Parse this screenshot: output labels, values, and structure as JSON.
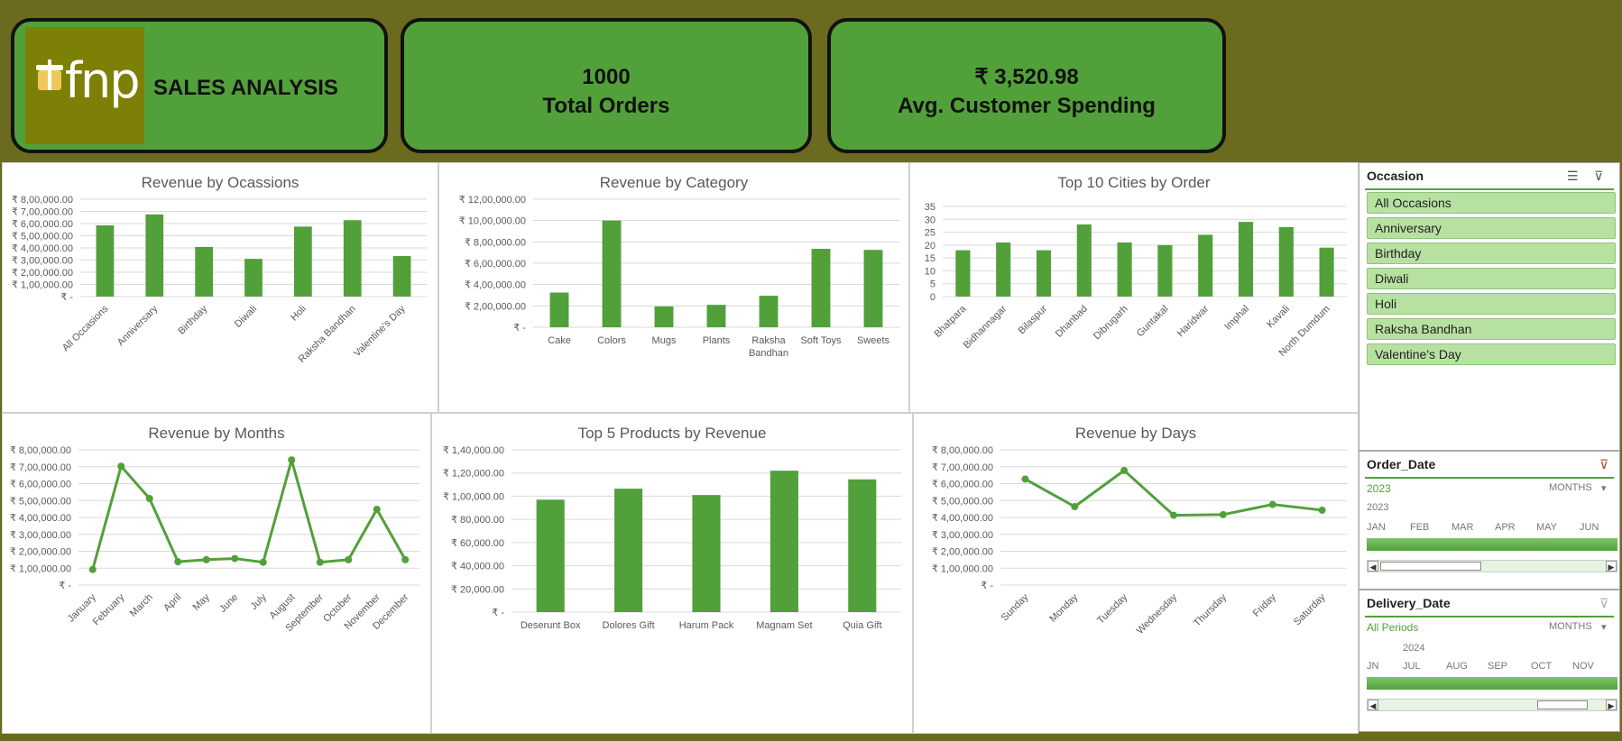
{
  "header": {
    "logo_text": "fnp",
    "title": "SALES ANALYSIS"
  },
  "kpis": {
    "orders_value": "1000",
    "orders_label": "Total Orders",
    "spending_value": "₹ 3,520.98",
    "spending_label": "Avg. Customer Spending"
  },
  "colors": {
    "accent": "#52a03a",
    "background": "#6b6b1f",
    "brand": "#7d8007"
  },
  "chart_data": [
    {
      "id": "occasions",
      "type": "bar",
      "title": "Revenue by Ocassions",
      "categories": [
        "All Occasions",
        "Anniversary",
        "Birthday",
        "Diwali",
        "Holi",
        "Raksha Bandhan",
        "Valentine's Day"
      ],
      "values": [
        585000,
        675000,
        408000,
        310000,
        575000,
        628000,
        333000
      ],
      "ylim": [
        0,
        800000
      ],
      "yticks": [
        0,
        100000,
        200000,
        300000,
        400000,
        500000,
        600000,
        700000,
        800000
      ],
      "ytick_labels": [
        "₹ -",
        "₹ 1,00,000.00",
        "₹ 2,00,000.00",
        "₹ 3,00,000.00",
        "₹ 4,00,000.00",
        "₹ 5,00,000.00",
        "₹ 6,00,000.00",
        "₹ 7,00,000.00",
        "₹ 8,00,000.00"
      ],
      "rotate_x": true
    },
    {
      "id": "category",
      "type": "bar",
      "title": "Revenue by Category",
      "categories": [
        "Cake",
        "Colors",
        "Mugs",
        "Plants",
        "Raksha Bandhan",
        "Soft Toys",
        "Sweets"
      ],
      "x_label_lines": [
        [
          "Cake"
        ],
        [
          "Colors"
        ],
        [
          "Mugs"
        ],
        [
          "Plants"
        ],
        [
          "Raksha",
          "Bandhan"
        ],
        [
          "Soft Toys"
        ],
        [
          "Sweets"
        ]
      ],
      "values": [
        325000,
        1000000,
        195000,
        210000,
        295000,
        735000,
        725000
      ],
      "ylim": [
        0,
        1200000
      ],
      "yticks": [
        0,
        200000,
        400000,
        600000,
        800000,
        1000000,
        1200000
      ],
      "ytick_labels": [
        "₹ -",
        "₹ 2,00,000.00",
        "₹ 4,00,000.00",
        "₹ 6,00,000.00",
        "₹ 8,00,000.00",
        "₹ 10,00,000.00",
        "₹ 12,00,000.00"
      ],
      "rotate_x": false
    },
    {
      "id": "cities",
      "type": "bar",
      "title": "Top 10 Cities by Order",
      "categories": [
        "Bhatpara",
        "Bidhannagar",
        "Bilaspur",
        "Dhanbad",
        "Dibrugarh",
        "Guntakal",
        "Haridwar",
        "Imphal",
        "Kavali",
        "North Dumdum"
      ],
      "values": [
        18,
        21,
        18,
        28,
        21,
        20,
        24,
        29,
        27,
        19
      ],
      "ylim": [
        0,
        35
      ],
      "yticks": [
        0,
        5,
        10,
        15,
        20,
        25,
        30,
        35
      ],
      "ytick_labels": [
        "0",
        "5",
        "10",
        "15",
        "20",
        "25",
        "30",
        "35"
      ],
      "rotate_x": true
    },
    {
      "id": "months",
      "type": "line",
      "title": "Revenue by Months",
      "categories": [
        "January",
        "February",
        "March",
        "April",
        "May",
        "June",
        "July",
        "August",
        "September",
        "October",
        "November",
        "December"
      ],
      "values": [
        92000,
        703000,
        512000,
        138000,
        150000,
        157000,
        135000,
        740000,
        135000,
        150000,
        448000,
        150000
      ],
      "ylim": [
        0,
        800000
      ],
      "yticks": [
        0,
        100000,
        200000,
        300000,
        400000,
        500000,
        600000,
        700000,
        800000
      ],
      "ytick_labels": [
        "₹ -",
        "₹ 1,00,000.00",
        "₹ 2,00,000.00",
        "₹ 3,00,000.00",
        "₹ 4,00,000.00",
        "₹ 5,00,000.00",
        "₹ 6,00,000.00",
        "₹ 7,00,000.00",
        "₹ 8,00,000.00"
      ],
      "rotate_x": true
    },
    {
      "id": "products",
      "type": "bar",
      "title": "Top 5 Products by Revenue",
      "categories": [
        "Deserunt Box",
        "Dolores Gift",
        "Harum Pack",
        "Magnam Set",
        "Quia Gift"
      ],
      "values": [
        97000,
        106500,
        101000,
        122000,
        114500
      ],
      "ylim": [
        0,
        140000
      ],
      "yticks": [
        0,
        20000,
        40000,
        60000,
        80000,
        100000,
        120000,
        140000
      ],
      "ytick_labels": [
        "₹ -",
        "₹ 20,000.00",
        "₹ 40,000.00",
        "₹ 60,000.00",
        "₹ 80,000.00",
        "₹ 1,00,000.00",
        "₹ 1,20,000.00",
        "₹ 1,40,000.00"
      ],
      "rotate_x": false
    },
    {
      "id": "days",
      "type": "line",
      "title": "Revenue by Days",
      "categories": [
        "Sunday",
        "Monday",
        "Tuesday",
        "Wednesday",
        "Thursday",
        "Friday",
        "Saturday"
      ],
      "values": [
        627000,
        464000,
        678000,
        413000,
        417000,
        477000,
        443000
      ],
      "ylim": [
        0,
        800000
      ],
      "yticks": [
        0,
        100000,
        200000,
        300000,
        400000,
        500000,
        600000,
        700000,
        800000
      ],
      "ytick_labels": [
        "₹ -",
        "₹ 1,00,000.00",
        "₹ 2,00,000.00",
        "₹ 3,00,000.00",
        "₹ 4,00,000.00",
        "₹ 5,00,000.00",
        "₹ 6,00,000.00",
        "₹ 7,00,000.00",
        "₹ 8,00,000.00"
      ],
      "rotate_x": true
    }
  ],
  "slicers": {
    "occasion": {
      "title": "Occasion",
      "items": [
        "All Occasions",
        "Anniversary",
        "Birthday",
        "Diwali",
        "Holi",
        "Raksha Bandhan",
        "Valentine's Day"
      ]
    },
    "order_date": {
      "title": "Order_Date",
      "selection": "2023",
      "level": "MONTHS",
      "year": "2023",
      "months": [
        "JAN",
        "FEB",
        "MAR",
        "APR",
        "MAY",
        "JUN"
      ]
    },
    "delivery_date": {
      "title": "Delivery_Date",
      "selection": "All Periods",
      "level": "MONTHS",
      "year": "2024",
      "months": [
        "JN",
        "JUL",
        "AUG",
        "SEP",
        "OCT",
        "NOV"
      ]
    }
  }
}
